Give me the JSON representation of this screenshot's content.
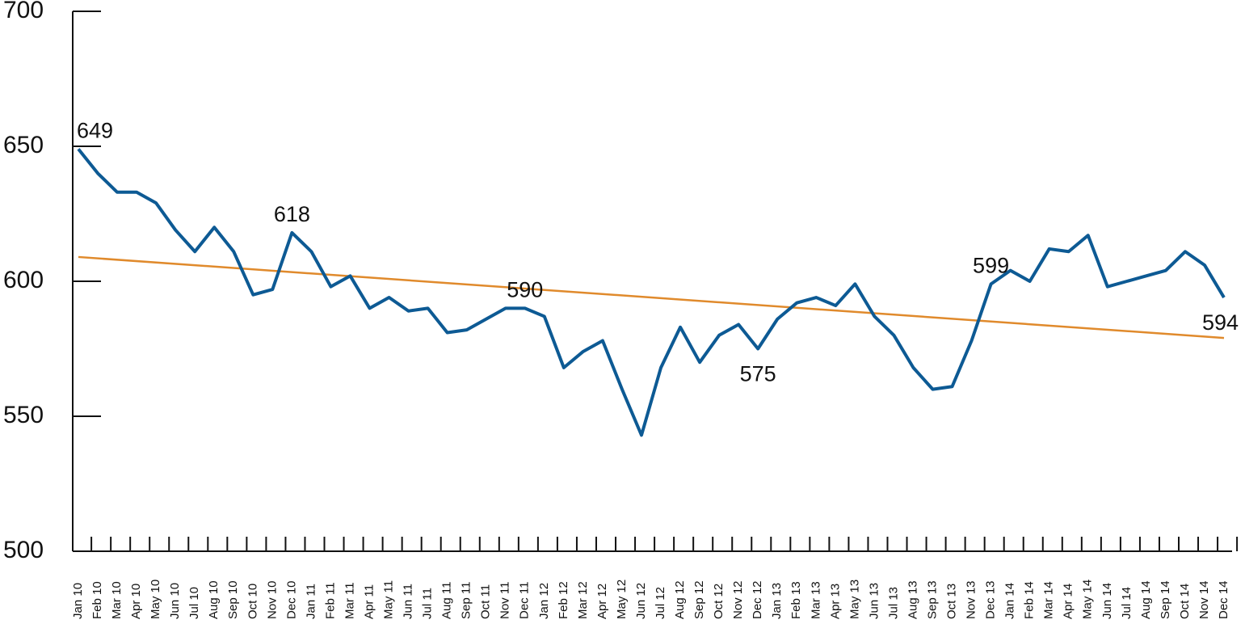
{
  "chart_data": {
    "type": "line",
    "categories": [
      "Jan 10",
      "Feb 10",
      "Mar 10",
      "Apr 10",
      "May 10",
      "Jun 10",
      "Jul 10",
      "Aug 10",
      "Sep 10",
      "Oct 10",
      "Nov 10",
      "Dec 10",
      "Jan 11",
      "Feb 11",
      "Mar 11",
      "Apr 11",
      "May 11",
      "Jun 11",
      "Jul 11",
      "Aug 11",
      "Sep 11",
      "Oct 11",
      "Nov 11",
      "Dec 11",
      "Jan 12",
      "Feb 12",
      "Mar 12",
      "Apr 12",
      "May 12",
      "Jun 12",
      "Jul 12",
      "Aug 12",
      "Sep 12",
      "Oct 12",
      "Nov 12",
      "Dec 12",
      "Jan 13",
      "Feb 13",
      "Mar 13",
      "Apr 13",
      "May 13",
      "Jun 13",
      "Jul 13",
      "Aug 13",
      "Sep 13",
      "Oct 13",
      "Nov 13",
      "Dec 13",
      "Jan 14",
      "Feb 14",
      "Mar 14",
      "Apr 14",
      "May 14",
      "Jun 14",
      "Jul 14",
      "Aug 14",
      "Sep 14",
      "Oct 14",
      "Nov 14",
      "Dec 14"
    ],
    "series": [
      {
        "color": "#0d5a94",
        "values": [
          649,
          640,
          633,
          633,
          629,
          619,
          611,
          620,
          611,
          595,
          597,
          618,
          611,
          598,
          602,
          590,
          594,
          589,
          590,
          581,
          582,
          586,
          590,
          590,
          587,
          568,
          574,
          578,
          560,
          543,
          568,
          583,
          570,
          580,
          584,
          575,
          586,
          592,
          594,
          591,
          599,
          587,
          580,
          568,
          560,
          561,
          578,
          599,
          604,
          600,
          612,
          611,
          617,
          598,
          600,
          602,
          604,
          611,
          606,
          594
        ]
      }
    ],
    "labeled_points": [
      0,
      11,
      23,
      35,
      47,
      59
    ],
    "trend_line": {
      "color": "#e08a2c",
      "values": [
        609,
        579
      ]
    },
    "ylim": [
      500,
      700
    ],
    "yticks": [
      500,
      550,
      600,
      650,
      700
    ]
  }
}
